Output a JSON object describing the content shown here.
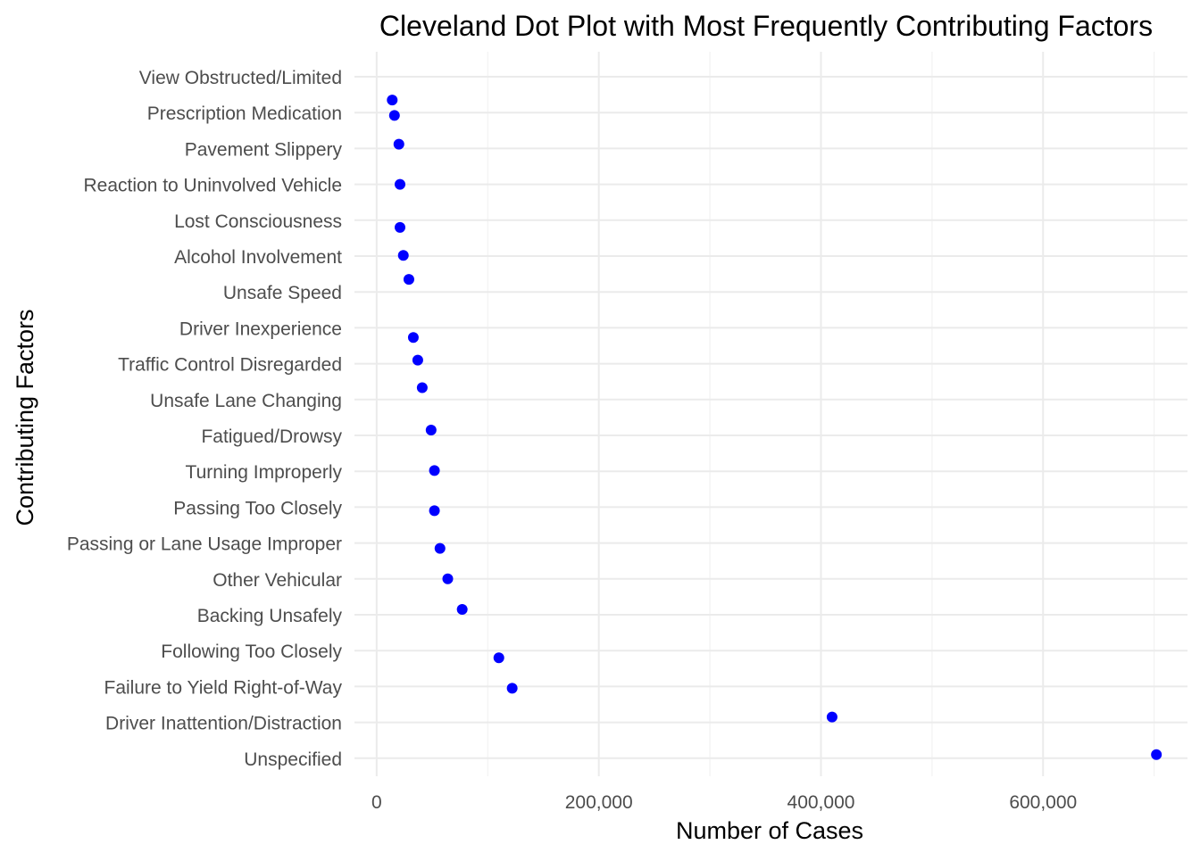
{
  "chart_data": {
    "type": "scatter",
    "title": "Cleveland Dot Plot with Most Frequently Contributing Factors",
    "xlabel": "Number of Cases",
    "ylabel": "Contributing Factors",
    "xlim": [
      -20000,
      730000
    ],
    "x_ticks": [
      0,
      200000,
      400000,
      600000
    ],
    "x_tick_labels": [
      "0",
      "200,000",
      "400,000",
      "600,000"
    ],
    "grid": true,
    "point_color": "#0000FF",
    "categories": [
      "View Obstructed/Limited",
      "Prescription Medication",
      "Pavement Slippery",
      "Reaction to Uninvolved Vehicle",
      "Lost Consciousness",
      "Alcohol Involvement",
      "Unsafe Speed",
      "Driver Inexperience",
      "Traffic Control Disregarded",
      "Unsafe Lane Changing",
      "Fatigued/Drowsy",
      "Turning Improperly",
      "Passing Too Closely",
      "Passing or Lane Usage Improper",
      "Other Vehicular",
      "Backing Unsafely",
      "Following Too Closely",
      "Failure to Yield Right-of-Way",
      "Driver Inattention/Distraction",
      "Unspecified"
    ],
    "points": [
      {
        "x": 14000,
        "y": 0.65
      },
      {
        "x": 16000,
        "y": 1.08
      },
      {
        "x": 20000,
        "y": 1.88
      },
      {
        "x": 21000,
        "y": 3.0
      },
      {
        "x": 21000,
        "y": 4.2
      },
      {
        "x": 24000,
        "y": 4.98
      },
      {
        "x": 29000,
        "y": 5.65
      },
      {
        "x": 33000,
        "y": 7.27
      },
      {
        "x": 37000,
        "y": 7.9
      },
      {
        "x": 41000,
        "y": 8.67
      },
      {
        "x": 49000,
        "y": 9.85
      },
      {
        "x": 52000,
        "y": 10.98
      },
      {
        "x": 52000,
        "y": 12.1
      },
      {
        "x": 57000,
        "y": 13.15
      },
      {
        "x": 64000,
        "y": 14.0
      },
      {
        "x": 77000,
        "y": 14.85
      },
      {
        "x": 110000,
        "y": 16.2
      },
      {
        "x": 122000,
        "y": 17.05
      },
      {
        "x": 410000,
        "y": 17.85
      },
      {
        "x": 702000,
        "y": 18.9
      }
    ]
  }
}
